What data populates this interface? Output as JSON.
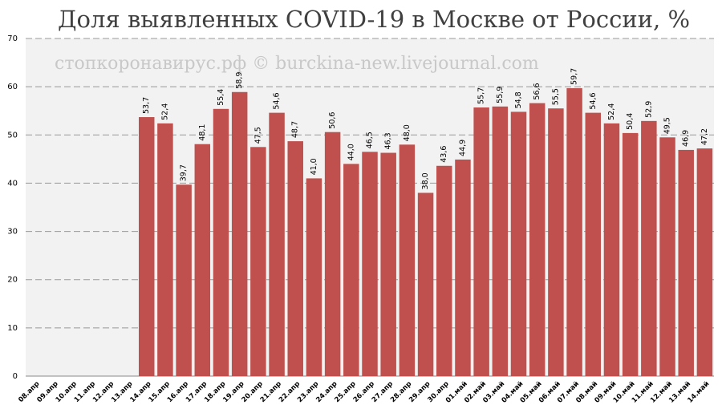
{
  "chart_data": {
    "type": "bar",
    "title": "Доля выявленных COVID-19 в Москве от России, %",
    "watermark": "стопкоронавирус.рф © burckina-new.livejournal.com",
    "categories": [
      "08.апр",
      "09.апр",
      "10.апр",
      "11.апр",
      "12.апр",
      "13.апр",
      "14.апр",
      "15.апр",
      "16.апр",
      "17.апр",
      "18.апр",
      "19.апр",
      "20.апр",
      "21.апр",
      "22.апр",
      "23.апр",
      "24.апр",
      "25.апр",
      "26.апр",
      "27.апр",
      "28.апр",
      "29.апр",
      "30.апр",
      "01.май",
      "02.май",
      "03.май",
      "04.май",
      "05.май",
      "06.май",
      "07.май",
      "08.май",
      "09.май",
      "10.май",
      "11.май",
      "12.май",
      "13.май",
      "14.май"
    ],
    "values": [
      null,
      null,
      null,
      null,
      null,
      null,
      53.7,
      52.4,
      39.7,
      48.1,
      55.4,
      58.9,
      47.5,
      54.6,
      48.7,
      41.0,
      50.6,
      44.0,
      46.5,
      46.3,
      48.0,
      38.0,
      43.6,
      44.9,
      55.7,
      55.9,
      54.8,
      56.6,
      55.5,
      59.7,
      54.6,
      52.4,
      50.4,
      52.9,
      49.5,
      46.9,
      47.2
    ],
    "value_labels": [
      null,
      null,
      null,
      null,
      null,
      null,
      "53,7",
      "52,4",
      "39,7",
      "48,1",
      "55,4",
      "58,9",
      "47,5",
      "54,6",
      "48,7",
      "41,0",
      "50,6",
      "44,0",
      "46,5",
      "46,3",
      "48,0",
      "38,0",
      "43,6",
      "44,9",
      "55,7",
      "55,9",
      "54,8",
      "56,6",
      "55,5",
      "59,7",
      "54,6",
      "52,4",
      "50,4",
      "52,9",
      "49,5",
      "46,9",
      "47,2"
    ],
    "color": "#c0504d",
    "ylim": [
      0,
      70
    ],
    "yticks": [
      0,
      10,
      20,
      30,
      40,
      50,
      60,
      70
    ],
    "grid": true
  }
}
